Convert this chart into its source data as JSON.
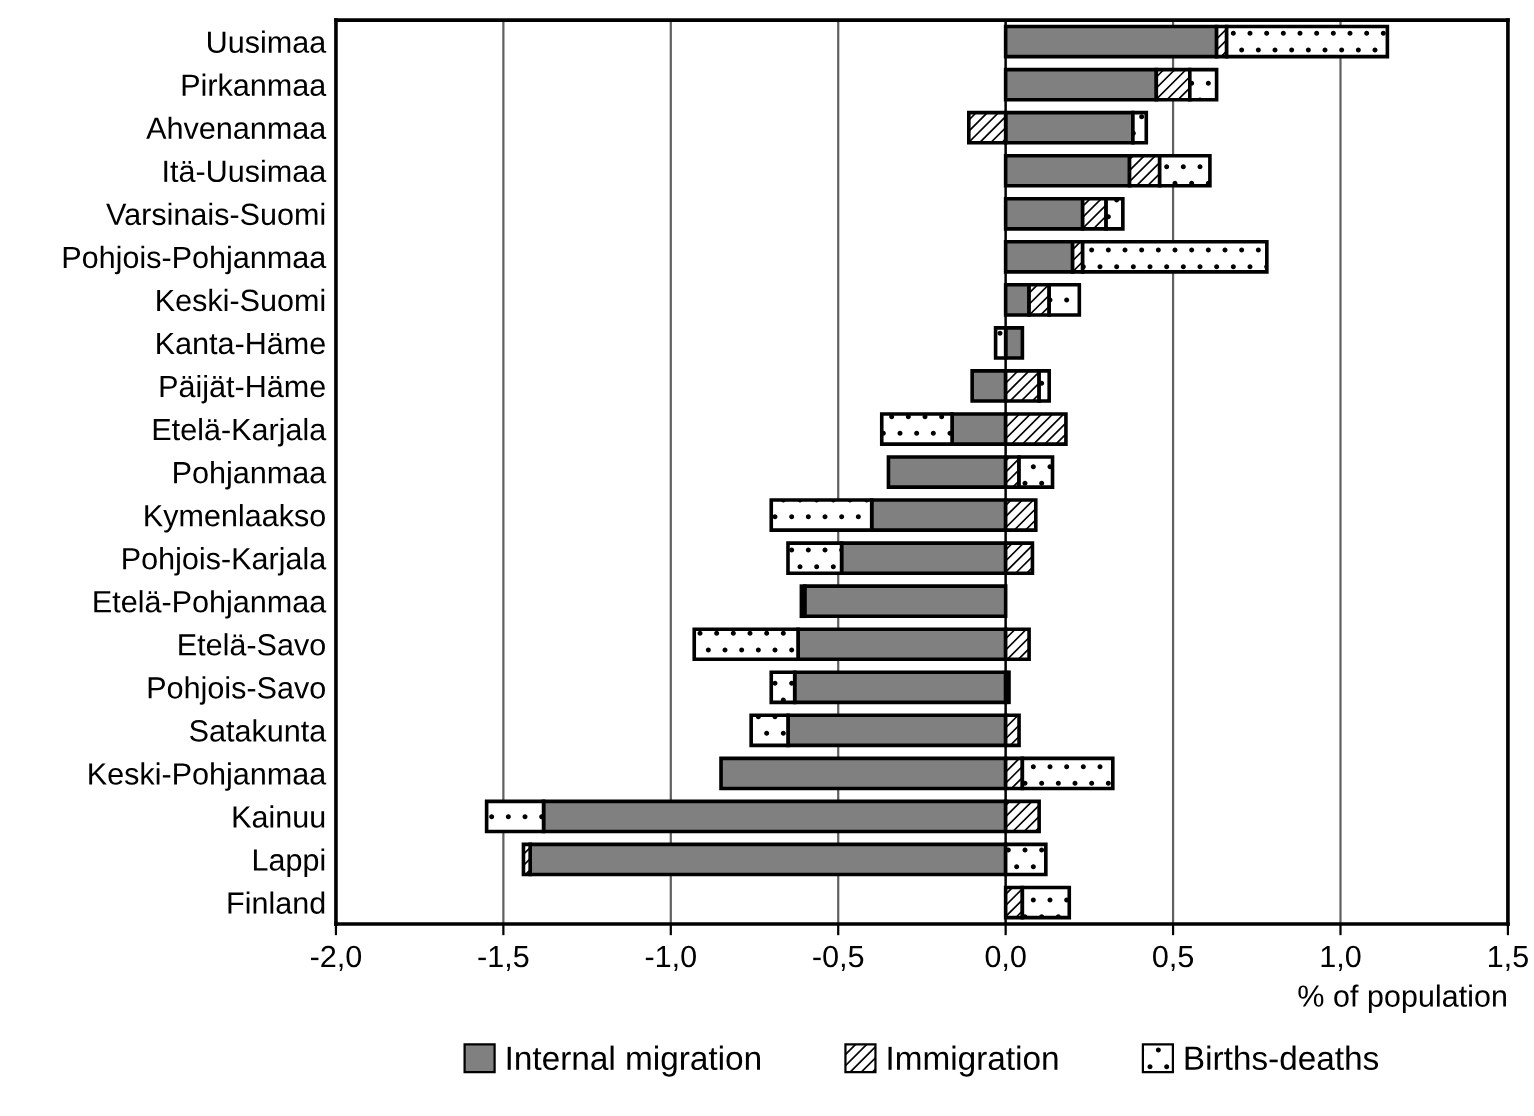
{
  "chart_data": {
    "type": "bar",
    "orientation": "horizontal",
    "stacked": true,
    "xlabel": "% of population",
    "categories": [
      "Uusimaa",
      "Pirkanmaa",
      "Ahvenanmaa",
      "Itä-Uusimaa",
      "Varsinais-Suomi",
      "Pohjois-Pohjanmaa",
      "Keski-Suomi",
      "Kanta-Häme",
      "Päijät-Häme",
      "Etelä-Karjala",
      "Pohjanmaa",
      "Kymenlaakso",
      "Pohjois-Karjala",
      "Etelä-Pohjanmaa",
      "Etelä-Savo",
      "Pohjois-Savo",
      "Satakunta",
      "Keski-Pohjanmaa",
      "Kainuu",
      "Lappi",
      "Finland"
    ],
    "series": [
      {
        "name": "Internal migration",
        "color": "#808080",
        "values": [
          0.63,
          0.45,
          0.38,
          0.37,
          0.23,
          0.2,
          0.07,
          0.05,
          -0.1,
          -0.16,
          -0.35,
          -0.4,
          -0.49,
          -0.6,
          -0.62,
          -0.63,
          -0.65,
          -0.85,
          -1.38,
          -1.42,
          null
        ]
      },
      {
        "name": "Immigration",
        "color": "#ffffff",
        "values": [
          0.03,
          0.1,
          -0.11,
          0.09,
          0.07,
          0.03,
          0.06,
          null,
          0.1,
          0.18,
          0.04,
          0.09,
          0.08,
          -0.01,
          0.07,
          0.01,
          0.04,
          0.05,
          0.1,
          -0.02,
          0.05
        ]
      },
      {
        "name": "Births-deaths",
        "color": "#ffffff",
        "values": [
          0.48,
          0.08,
          0.04,
          0.15,
          0.05,
          0.55,
          0.09,
          -0.03,
          0.03,
          -0.21,
          0.1,
          -0.3,
          -0.16,
          null,
          -0.31,
          -0.07,
          -0.11,
          0.27,
          -0.17,
          0.12,
          0.14
        ]
      }
    ],
    "xlim": [
      -2.0,
      1.5
    ],
    "xticks": [
      {
        "value": -2.0,
        "label": "-2,0"
      },
      {
        "value": -1.5,
        "label": "-1,5"
      },
      {
        "value": -1.0,
        "label": "-1,0"
      },
      {
        "value": -0.5,
        "label": "-0,5"
      },
      {
        "value": 0.0,
        "label": "0,0"
      },
      {
        "value": 0.5,
        "label": "0,5"
      },
      {
        "value": 1.0,
        "label": "1,0"
      },
      {
        "value": 1.5,
        "label": "1,5"
      }
    ],
    "grid": "x",
    "legend": "bottom"
  }
}
